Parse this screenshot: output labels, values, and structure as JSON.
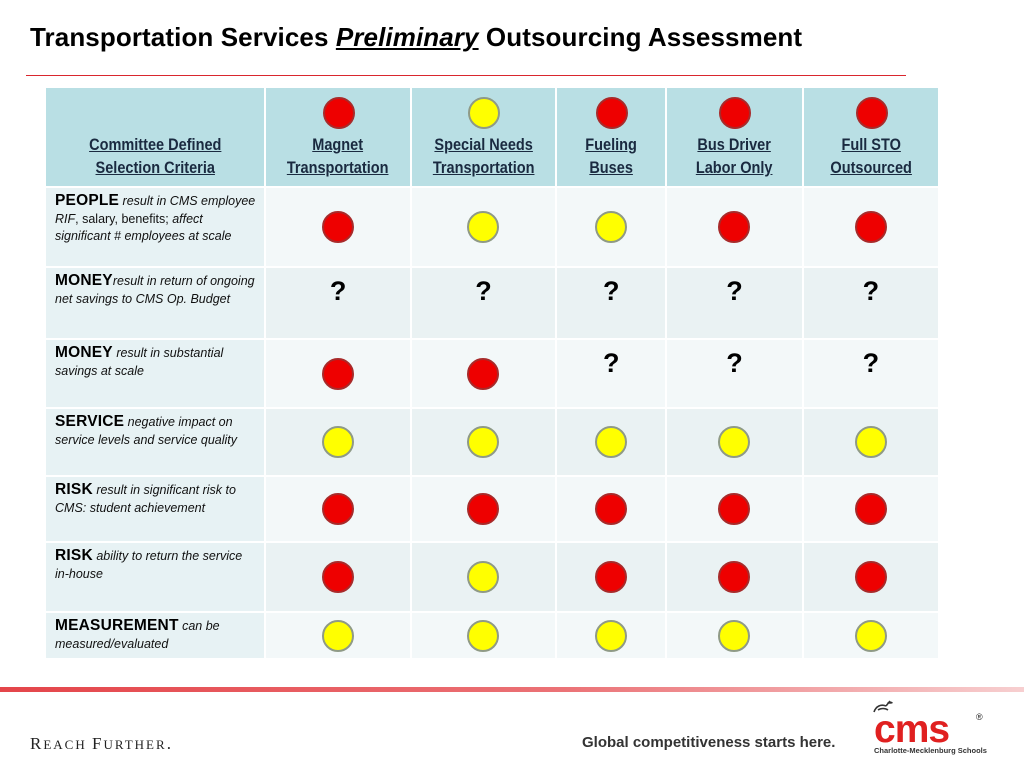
{
  "title": {
    "before": "Transportation Services",
    "emphasis": "Preliminary",
    "after": "Outsourcing Assessment"
  },
  "table": {
    "criteria_header": [
      "Committee Defined",
      "Selection  Criteria"
    ],
    "columns": [
      {
        "label": [
          "Magnet",
          "Transportation"
        ],
        "status": "red"
      },
      {
        "label": [
          "Special Needs",
          "Transportation"
        ],
        "status": "yellow"
      },
      {
        "label": [
          "Fueling",
          "Buses"
        ],
        "status": "red"
      },
      {
        "label": [
          "Bus Driver",
          "Labor Only"
        ],
        "status": "red"
      },
      {
        "label": [
          "Full STO",
          "Outsourced"
        ],
        "status": "red"
      }
    ],
    "rows": [
      {
        "keyword": "PEOPLE",
        "desc": " result in CMS employee RIF",
        "desc_plain": ", salary, benefits; ",
        "desc2": "affect significant # employees at scale",
        "cells": [
          "red",
          "yellow",
          "yellow",
          "red",
          "red"
        ]
      },
      {
        "keyword": "MONEY",
        "desc": "result in return of ongoing net savings to CMS Op. Budget",
        "cells": [
          "?",
          "?",
          "?",
          "?",
          "?"
        ]
      },
      {
        "keyword": "MONEY",
        "desc": " result in substantial savings at scale",
        "cells": [
          "red",
          "red",
          "?",
          "?",
          "?"
        ]
      },
      {
        "keyword": "SERVICE",
        "desc": " negative impact on service levels and service quality",
        "cells": [
          "yellow",
          "yellow",
          "yellow",
          "yellow",
          "yellow"
        ]
      },
      {
        "keyword": "RISK",
        "desc": " result in significant risk to CMS: student achievement",
        "cells": [
          "red",
          "red",
          "red",
          "red",
          "red"
        ]
      },
      {
        "keyword": "RISK",
        "desc": " ability to return the service in-house",
        "cells": [
          "red",
          "yellow",
          "red",
          "red",
          "red"
        ]
      },
      {
        "keyword": "MEASUREMENT",
        "desc": " can be measured/evaluated",
        "cells": [
          "yellow",
          "yellow",
          "yellow",
          "yellow",
          "yellow"
        ]
      }
    ]
  },
  "footer": {
    "tagline_left_caps": [
      "R",
      "F",
      "."
    ],
    "tagline_left_small": [
      "EACH ",
      "URTHER"
    ],
    "tagline_right": "Global competitiveness starts here.",
    "logo_text": "cms",
    "logo_reg": "®",
    "logo_sub": "Charlotte-Mecklenburg Schools"
  },
  "colors": {
    "red": "#ee0000",
    "yellow": "#ffff00",
    "header_bg": "#b9dfe4",
    "accent_rule": "#d9272e",
    "logo_red": "#e02020"
  }
}
